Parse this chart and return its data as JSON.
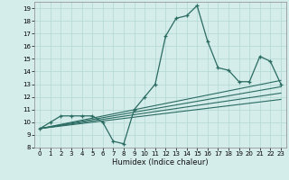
{
  "xlabel": "Humidex (Indice chaleur)",
  "ylabel": "",
  "background_color": "#d4ecea",
  "grid_color": "#b2d8d4",
  "line_color": "#2a6b62",
  "xlim": [
    -0.5,
    23.5
  ],
  "ylim": [
    8,
    19.5
  ],
  "xticks": [
    0,
    1,
    2,
    3,
    4,
    5,
    6,
    7,
    8,
    9,
    10,
    11,
    12,
    13,
    14,
    15,
    16,
    17,
    18,
    19,
    20,
    21,
    22,
    23
  ],
  "yticks": [
    8,
    9,
    10,
    11,
    12,
    13,
    14,
    15,
    16,
    17,
    18,
    19
  ],
  "main_x": [
    0,
    1,
    2,
    3,
    4,
    5,
    6,
    7,
    8,
    9,
    10,
    11,
    12,
    13,
    14,
    15,
    16,
    17,
    18,
    19,
    20,
    21,
    22,
    23
  ],
  "main_y": [
    9.5,
    10.0,
    10.5,
    10.5,
    10.5,
    10.5,
    10.0,
    8.5,
    8.3,
    11.0,
    12.0,
    13.0,
    16.8,
    18.2,
    18.4,
    19.2,
    16.4,
    14.3,
    14.1,
    13.2,
    13.2,
    15.2,
    14.8,
    13.0
  ],
  "line2_x": [
    0,
    23
  ],
  "line2_y": [
    9.5,
    13.3
  ],
  "line3_x": [
    0,
    23
  ],
  "line3_y": [
    9.5,
    12.8
  ],
  "line4_x": [
    0,
    23
  ],
  "line4_y": [
    9.5,
    12.3
  ],
  "line5_x": [
    0,
    23
  ],
  "line5_y": [
    9.5,
    11.8
  ]
}
